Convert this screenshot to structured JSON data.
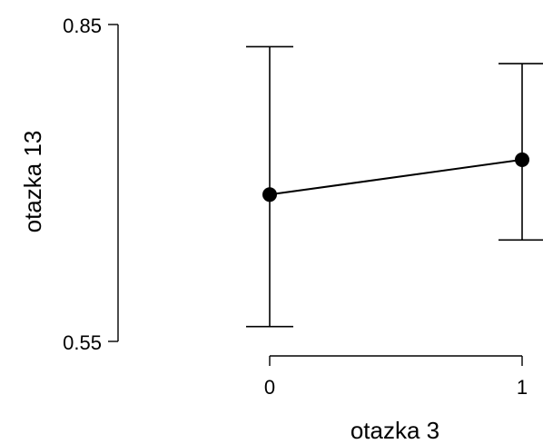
{
  "chart_data": {
    "type": "line",
    "title": "",
    "xlabel": "otazka 3",
    "ylabel": "otazka 13",
    "categories": [
      "0",
      "1"
    ],
    "ylim": [
      0.55,
      0.85
    ],
    "yticks": [
      "0.85",
      "0.55"
    ],
    "grid": false,
    "legend": "none",
    "series": [
      {
        "values": [
          0.689,
          0.722
        ],
        "error_lower": [
          0.564,
          0.646
        ],
        "error_upper": [
          0.829,
          0.813
        ]
      }
    ],
    "colors": {
      "line": "#000000",
      "axis": "#000000"
    }
  }
}
